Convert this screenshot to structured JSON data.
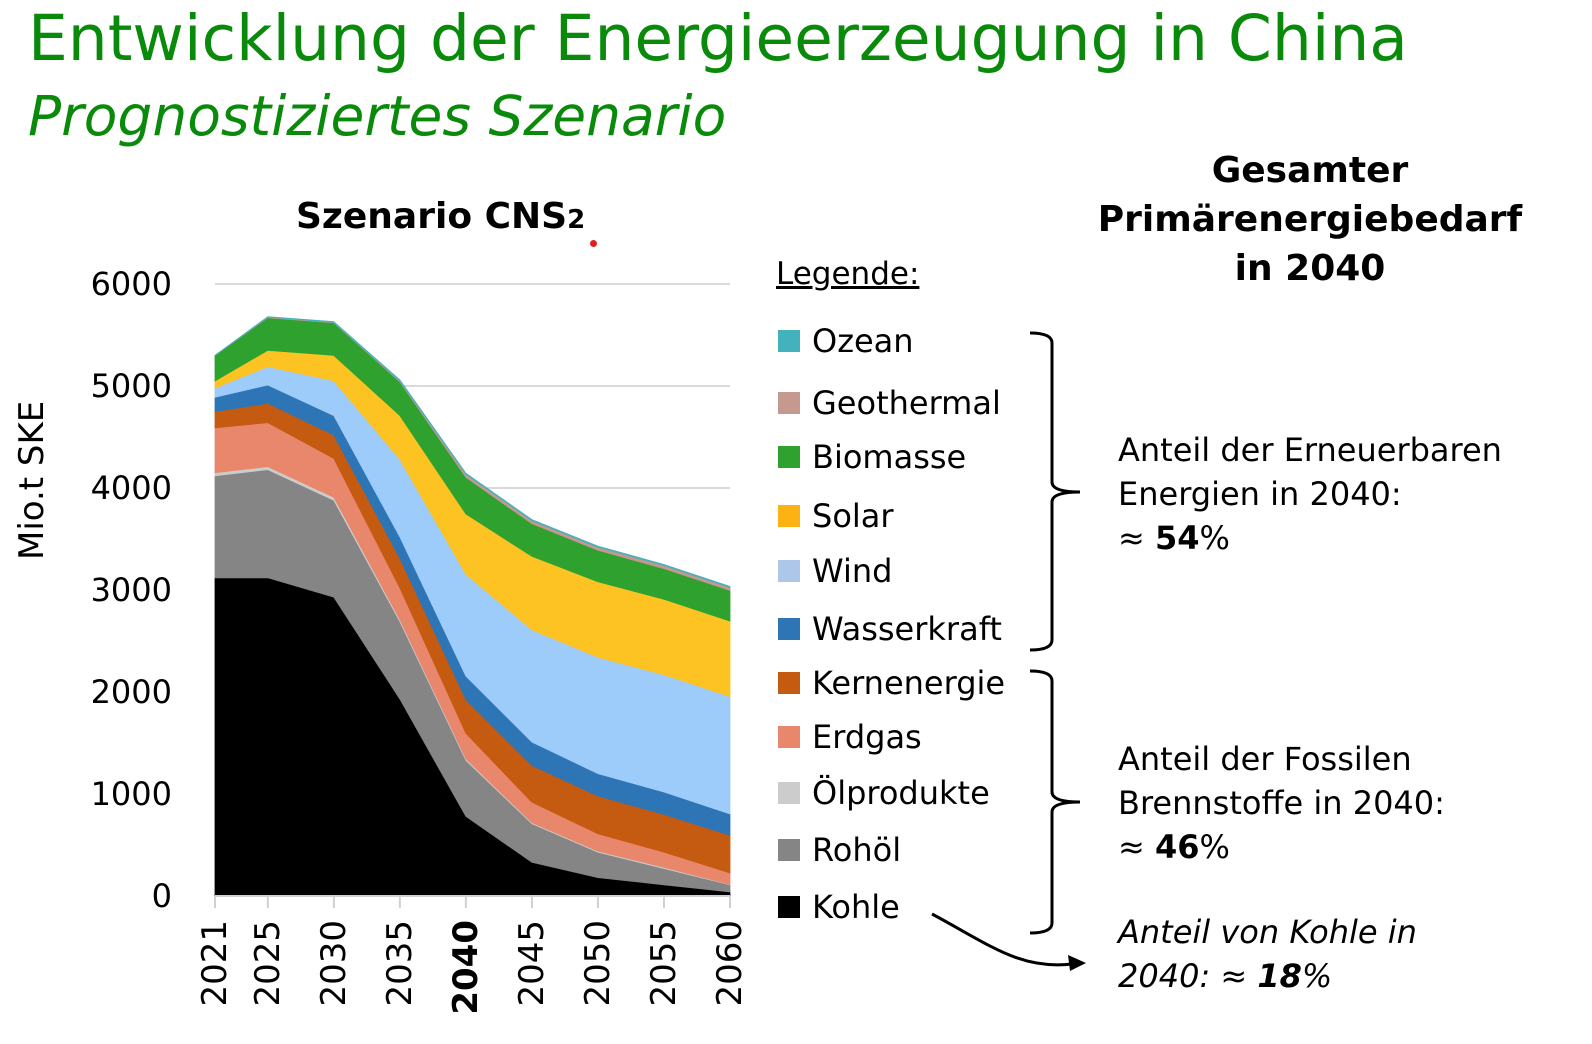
{
  "header": {
    "title": "Entwicklung der Energieerzeugung in China",
    "subtitle": "Prognostiziertes Szenario"
  },
  "chart_data": {
    "type": "area",
    "stacked": true,
    "title": "Szenario CNS",
    "title_subscript": "2",
    "xlabel": "",
    "ylabel": "Mio.t SKE",
    "x": [
      2021,
      2025,
      2030,
      2035,
      2040,
      2045,
      2050,
      2055,
      2060
    ],
    "x_tick_labels": [
      "2021",
      "2025",
      "2030",
      "2035",
      "2040",
      "2045",
      "2050",
      "2055",
      "2060"
    ],
    "x_bold_tick": "2040",
    "y_ticks": [
      0,
      1000,
      2000,
      3000,
      4000,
      5000,
      6000
    ],
    "ylim": [
      0,
      6000
    ],
    "grid": true,
    "series": [
      {
        "name": "Kohle",
        "color": "#000000",
        "values": [
          3120,
          3120,
          2930,
          1930,
          780,
          330,
          180,
          110,
          40
        ]
      },
      {
        "name": "Rohöl",
        "color": "#858585",
        "values": [
          1000,
          1060,
          950,
          760,
          550,
          380,
          250,
          160,
          70
        ]
      },
      {
        "name": "Ölprodukte",
        "color": "#cccccc",
        "values": [
          30,
          30,
          30,
          20,
          15,
          10,
          10,
          10,
          5
        ]
      },
      {
        "name": "Erdgas",
        "color": "#e8876b",
        "values": [
          440,
          430,
          380,
          310,
          250,
          200,
          170,
          150,
          110
        ]
      },
      {
        "name": "Kernenergie",
        "color": "#c55a11",
        "values": [
          160,
          190,
          230,
          290,
          330,
          360,
          370,
          370,
          370
        ]
      },
      {
        "name": "Wasserkraft",
        "color": "#2e75b6",
        "values": [
          140,
          180,
          190,
          210,
          230,
          230,
          220,
          220,
          210
        ]
      },
      {
        "name": "Wind",
        "color": "#9dcbfa",
        "values": [
          90,
          180,
          340,
          760,
          1000,
          1100,
          1140,
          1150,
          1150
        ]
      },
      {
        "name": "Solar",
        "color": "#fdc322",
        "values": [
          70,
          160,
          250,
          430,
          590,
          720,
          740,
          740,
          740
        ]
      },
      {
        "name": "Biomasse",
        "color": "#2ea12e",
        "values": [
          250,
          320,
          320,
          330,
          360,
          320,
          310,
          300,
          300
        ]
      },
      {
        "name": "Geothermal",
        "color": "#c7968f",
        "values": [
          0,
          5,
          5,
          10,
          30,
          30,
          30,
          30,
          30
        ]
      },
      {
        "name": "Ozean",
        "color": "#44b2bd",
        "values": [
          0,
          5,
          5,
          10,
          10,
          10,
          10,
          10,
          10
        ]
      }
    ]
  },
  "legend": {
    "title": "Legende:",
    "items": [
      {
        "label": "Ozean",
        "color": "#44b2bd"
      },
      {
        "label": "Geothermal",
        "color": "#c59990"
      },
      {
        "label": "Biomasse",
        "color": "#2ea12e"
      },
      {
        "label": "Solar",
        "color": "#fdb213"
      },
      {
        "label": "Wind",
        "color": "#adc7ea"
      },
      {
        "label": "Wasserkraft",
        "color": "#2e75b6"
      },
      {
        "label": "Kernenergie",
        "color": "#c55a11"
      },
      {
        "label": "Erdgas",
        "color": "#e8876b"
      },
      {
        "label": "Ölprodukte",
        "color": "#cccccc"
      },
      {
        "label": "Rohöl",
        "color": "#858585"
      },
      {
        "label": "Kohle",
        "color": "#000000"
      }
    ]
  },
  "summary": {
    "title_line1": "Gesamter",
    "title_line2": "Primärenergiebedarf",
    "title_line3": "in 2040",
    "renewables": {
      "line1": "Anteil der Erneuerbaren",
      "line2": "Energien in 2040:",
      "approx": "≈ ",
      "value": "54",
      "unit": "%"
    },
    "fossil": {
      "line1": "Anteil der Fossilen",
      "line2": "Brennstoffe in 2040:",
      "approx": "≈ ",
      "value": "46",
      "unit": "%"
    },
    "coal": {
      "line1": "Anteil von Kohle in",
      "line2_prefix": "2040: ≈ ",
      "value": "18",
      "unit": "%"
    }
  }
}
